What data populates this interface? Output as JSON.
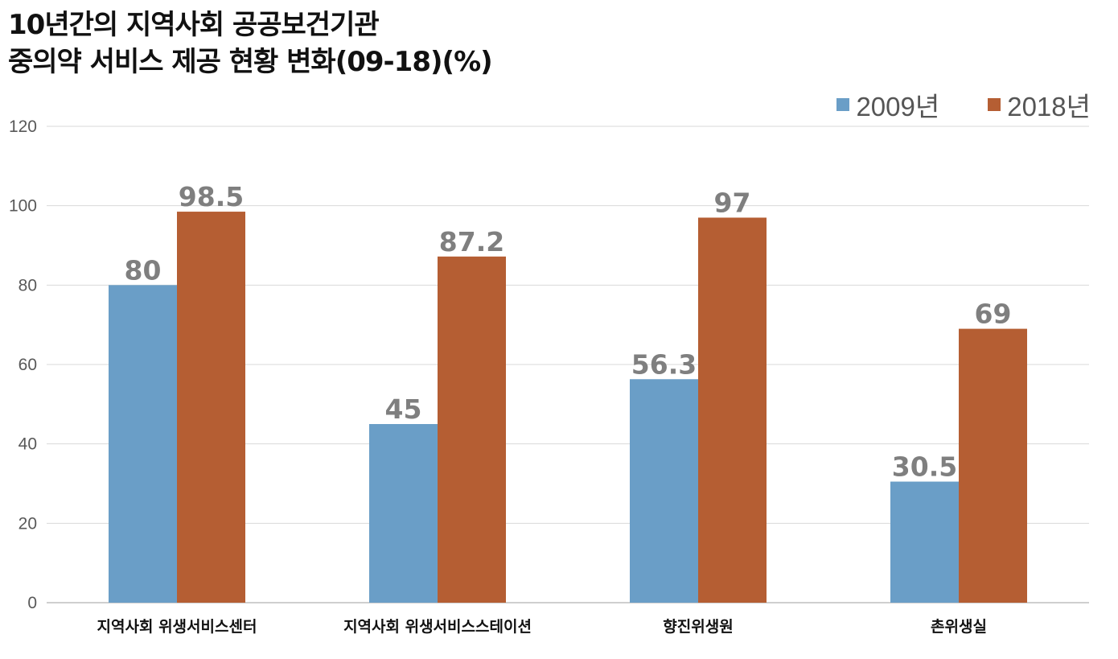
{
  "chart_data": {
    "type": "bar",
    "title_line1": "10년간의 지역사회 공공보건기관",
    "title_line2": "중의약 서비스 제공 현황 변화(09-18)(%)",
    "categories": [
      "지역사회 위생서비스센터",
      "지역사회 위생서비스스테이션",
      "향진위생원",
      "촌위생실"
    ],
    "series": [
      {
        "name": "2009년",
        "color": "#6a9ec7",
        "values": [
          80,
          45,
          56.3,
          30.5
        ]
      },
      {
        "name": "2018년",
        "color": "#b55e33",
        "values": [
          98.5,
          87.2,
          97,
          69
        ]
      }
    ],
    "data_labels": [
      [
        "80",
        "45",
        "56.3",
        "30.5"
      ],
      [
        "98.5",
        "87.2",
        "97",
        "69"
      ]
    ],
    "ylim": [
      0,
      120
    ],
    "yticks": [
      0,
      20,
      40,
      60,
      80,
      100,
      120
    ],
    "grid": true,
    "legend_position": "top-right",
    "xlabel": "",
    "ylabel": ""
  }
}
